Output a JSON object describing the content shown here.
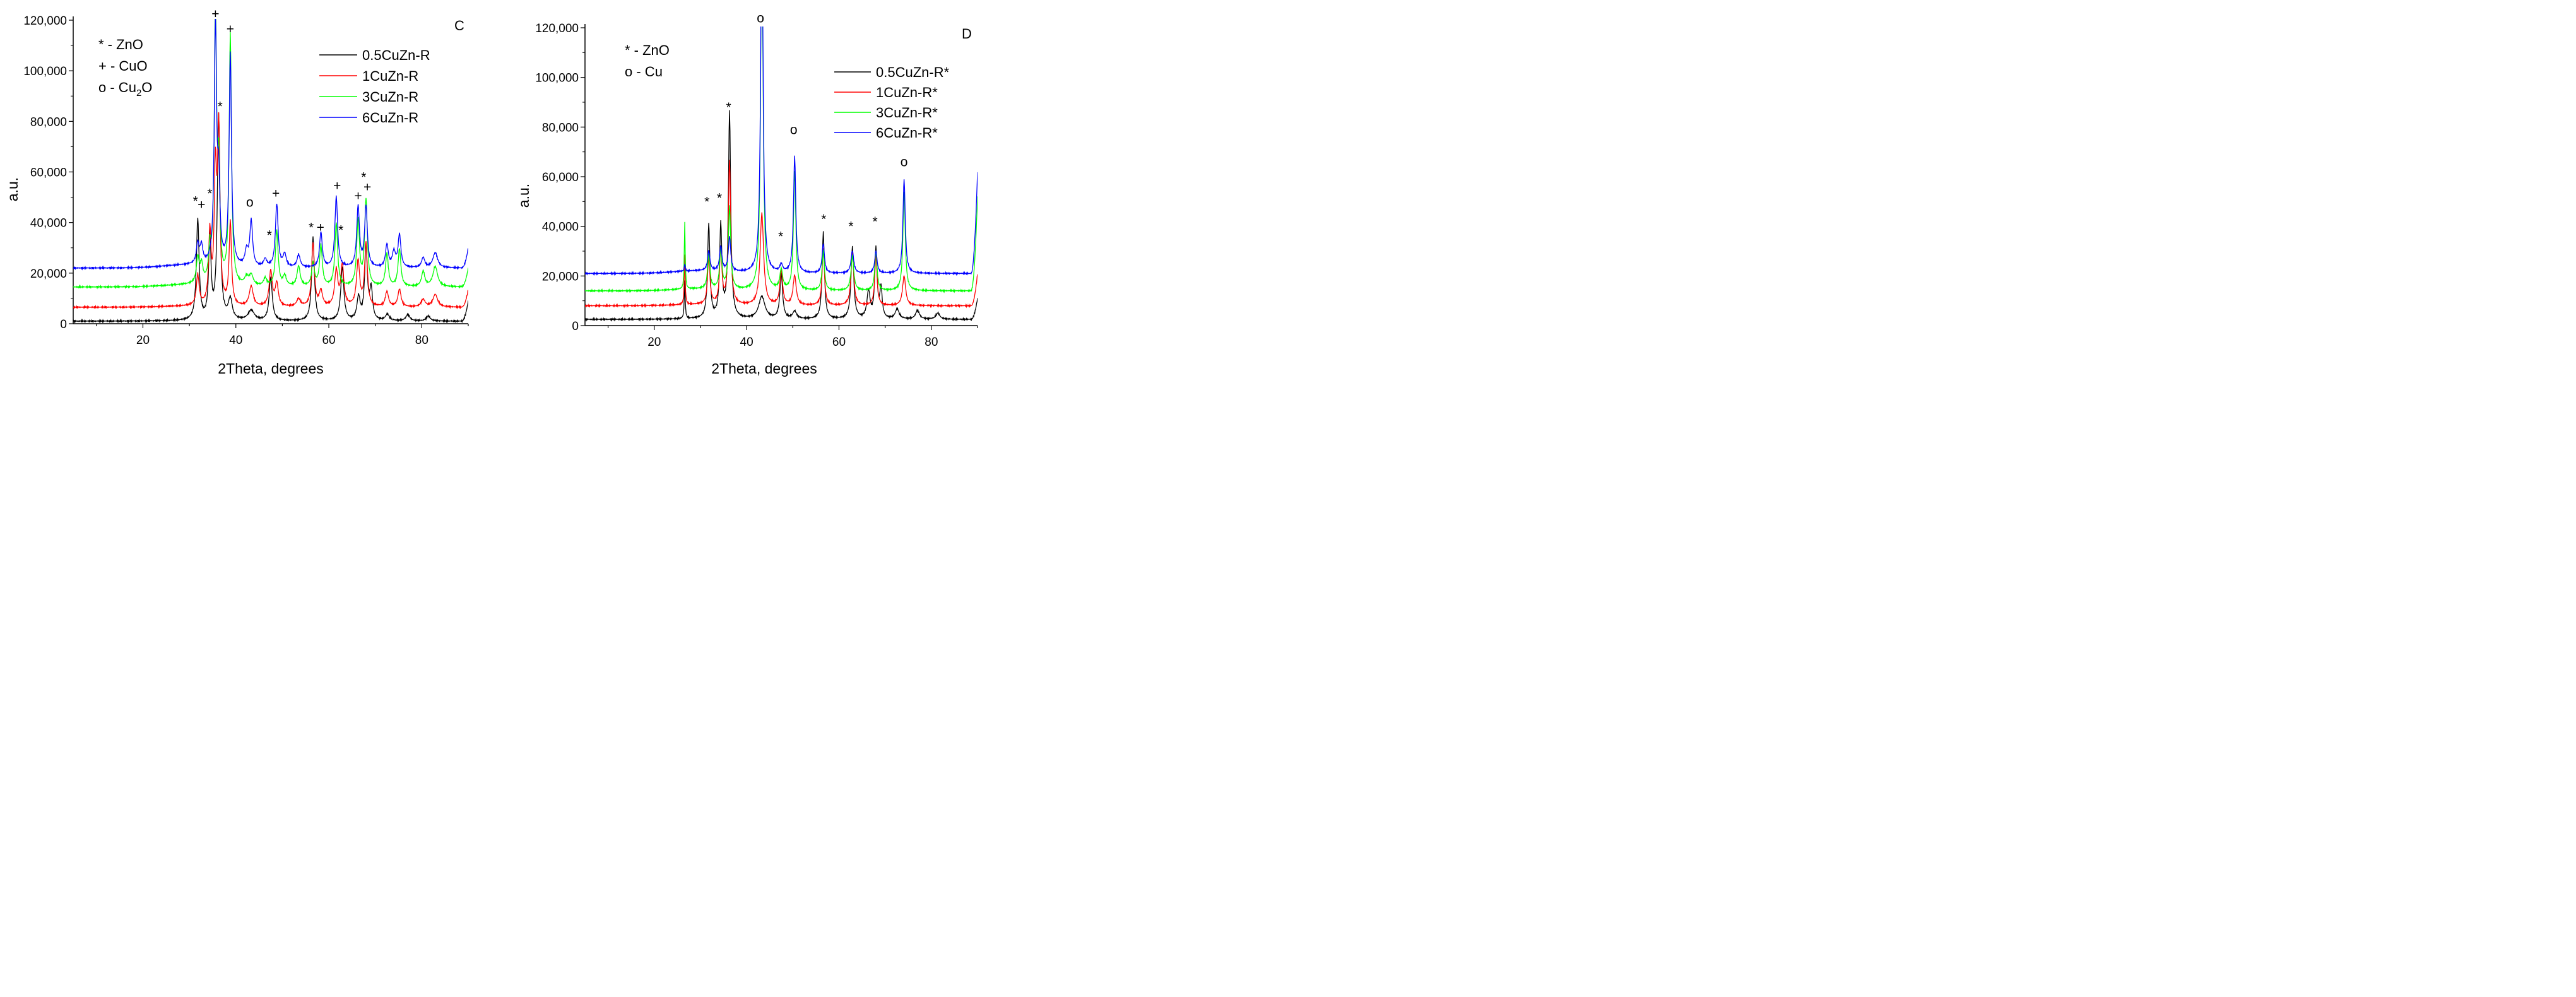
{
  "chart_data": [
    {
      "type": "line",
      "panel_label": "C",
      "xlabel": "2Theta, degrees",
      "ylabel": "a.u.",
      "xlim": [
        5,
        90
      ],
      "ylim": [
        0,
        120000
      ],
      "xticks": [
        20,
        40,
        60,
        80
      ],
      "yticks": [
        0,
        20000,
        40000,
        60000,
        80000,
        100000,
        120000
      ],
      "ytick_labels": [
        "0",
        "20,000",
        "40,000",
        "60,000",
        "80,000",
        "100,000",
        "120,000"
      ],
      "phase_key": [
        {
          "symbol": "*",
          "text": " - ZnO"
        },
        {
          "symbol": "+",
          "text": " - CuO"
        },
        {
          "symbol": "o",
          "text": " - Cu",
          "sub": "2",
          "tail": "O"
        }
      ],
      "legend_position": "top-right",
      "series": [
        {
          "name": "0.5CuZn-R",
          "color": "#000000",
          "baseline": 1000,
          "end": 9000,
          "peaks": [
            [
              31.8,
              40000,
              0.35
            ],
            [
              34.4,
              33000,
              0.3
            ],
            [
              36.3,
              81000,
              0.35
            ],
            [
              38.8,
              8000,
              0.5
            ],
            [
              43.3,
              4000,
              0.8
            ],
            [
              47.5,
              17000,
              0.4
            ],
            [
              56.6,
              33000,
              0.35
            ],
            [
              62.9,
              21000,
              0.4
            ],
            [
              66.4,
              9000,
              0.4
            ],
            [
              68.0,
              29000,
              0.35
            ],
            [
              69.1,
              12000,
              0.35
            ],
            [
              72.6,
              2500,
              0.5
            ],
            [
              77.0,
              2500,
              0.5
            ],
            [
              81.4,
              2000,
              0.5
            ]
          ]
        },
        {
          "name": "1CuZn-R",
          "color": "#ff0000",
          "baseline": 6500,
          "end": 13500,
          "peaks": [
            [
              31.8,
              12000,
              0.35
            ],
            [
              34.4,
              28000,
              0.3
            ],
            [
              35.6,
              51000,
              0.3
            ],
            [
              36.3,
              68000,
              0.3
            ],
            [
              38.8,
              33000,
              0.3
            ],
            [
              43.3,
              8000,
              0.5
            ],
            [
              47.5,
              14000,
              0.4
            ],
            [
              48.8,
              9000,
              0.4
            ],
            [
              53.5,
              3000,
              0.5
            ],
            [
              56.6,
              25000,
              0.35
            ],
            [
              58.3,
              6000,
              0.4
            ],
            [
              61.6,
              14000,
              0.4
            ],
            [
              62.9,
              16000,
              0.4
            ],
            [
              66.3,
              18000,
              0.4
            ],
            [
              68.0,
              25000,
              0.35
            ],
            [
              72.5,
              6000,
              0.4
            ],
            [
              75.2,
              7000,
              0.4
            ],
            [
              80.3,
              3000,
              0.5
            ],
            [
              82.9,
              5000,
              0.6
            ]
          ]
        },
        {
          "name": "3CuZn-R",
          "color": "#00ff00",
          "baseline": 14500,
          "end": 22000,
          "peaks": [
            [
              31.8,
              10000,
              0.35
            ],
            [
              32.6,
              7000,
              0.35
            ],
            [
              34.4,
              12000,
              0.3
            ],
            [
              35.6,
              105000,
              0.3
            ],
            [
              36.3,
              40000,
              0.3
            ],
            [
              38.8,
              99000,
              0.3
            ],
            [
              42.3,
              3000,
              0.5
            ],
            [
              43.3,
              4000,
              0.5
            ],
            [
              46.3,
              3000,
              0.4
            ],
            [
              48.8,
              22000,
              0.35
            ],
            [
              50.5,
              4000,
              0.4
            ],
            [
              53.5,
              8000,
              0.4
            ],
            [
              56.6,
              9000,
              0.35
            ],
            [
              58.3,
              16000,
              0.35
            ],
            [
              61.6,
              25000,
              0.35
            ],
            [
              66.3,
              26000,
              0.35
            ],
            [
              68.0,
              34000,
              0.35
            ],
            [
              72.5,
              13000,
              0.35
            ],
            [
              75.2,
              15000,
              0.35
            ],
            [
              80.3,
              6000,
              0.4
            ],
            [
              82.9,
              8000,
              0.6
            ]
          ]
        },
        {
          "name": "6CuZn-R",
          "color": "#0000ff",
          "baseline": 22000,
          "end": 30000,
          "peaks": [
            [
              31.8,
              8000,
              0.35
            ],
            [
              32.6,
              7000,
              0.35
            ],
            [
              35.6,
              94000,
              0.3
            ],
            [
              36.3,
              30000,
              0.3
            ],
            [
              38.8,
              84000,
              0.3
            ],
            [
              42.3,
              6000,
              0.4
            ],
            [
              43.3,
              18000,
              0.35
            ],
            [
              46.3,
              3000,
              0.4
            ],
            [
              48.8,
              25000,
              0.35
            ],
            [
              50.5,
              5000,
              0.4
            ],
            [
              53.5,
              5000,
              0.4
            ],
            [
              58.3,
              14000,
              0.35
            ],
            [
              61.6,
              28000,
              0.35
            ],
            [
              66.3,
              24000,
              0.35
            ],
            [
              68.0,
              24000,
              0.35
            ],
            [
              72.5,
              9000,
              0.35
            ],
            [
              74.0,
              6000,
              0.4
            ],
            [
              75.2,
              13000,
              0.35
            ],
            [
              80.3,
              4000,
              0.4
            ],
            [
              82.9,
              6000,
              0.6
            ]
          ]
        }
      ],
      "annotations": [
        {
          "text": "*",
          "x": 31.3,
          "y": 48500
        },
        {
          "text": "+",
          "x": 32.6,
          "y": 47000
        },
        {
          "text": "*",
          "x": 34.4,
          "y": 51500
        },
        {
          "text": "+",
          "x": 35.6,
          "y": 122500
        },
        {
          "text": "*",
          "x": 36.6,
          "y": 86000
        },
        {
          "text": "+",
          "x": 38.8,
          "y": 116500
        },
        {
          "text": "o",
          "x": 43.0,
          "y": 48000
        },
        {
          "text": "+",
          "x": 48.6,
          "y": 51500
        },
        {
          "text": "*",
          "x": 47.2,
          "y": 35000
        },
        {
          "text": "*",
          "x": 56.2,
          "y": 38000
        },
        {
          "text": "+",
          "x": 58.2,
          "y": 38000
        },
        {
          "text": "*",
          "x": 62.6,
          "y": 37000
        },
        {
          "text": "+",
          "x": 61.8,
          "y": 54500
        },
        {
          "text": "+",
          "x": 66.3,
          "y": 50500
        },
        {
          "text": "*",
          "x": 67.5,
          "y": 58000
        },
        {
          "text": "+",
          "x": 68.3,
          "y": 54000
        }
      ]
    },
    {
      "type": "line",
      "panel_label": "D",
      "xlabel": "2Theta, degrees",
      "ylabel": "a.u.",
      "xlim": [
        5,
        90
      ],
      "ylim": [
        0,
        120000
      ],
      "xticks": [
        20,
        40,
        60,
        80
      ],
      "yticks": [
        0,
        20000,
        40000,
        60000,
        80000,
        100000,
        120000
      ],
      "ytick_labels": [
        "0",
        "20,000",
        "40,000",
        "60,000",
        "80,000",
        "100,000",
        "120,000"
      ],
      "phase_key": [
        {
          "symbol": "*",
          "text": " - ZnO"
        },
        {
          "symbol": "o",
          "text": " - Cu"
        }
      ],
      "legend_position": "top-right",
      "series": [
        {
          "name": "0.5CuZn-R*",
          "color": "#000000",
          "baseline": 2500,
          "end": 11000,
          "peaks": [
            [
              26.6,
              15000,
              0.12
            ],
            [
              31.8,
              38000,
              0.3
            ],
            [
              34.4,
              37000,
              0.3
            ],
            [
              36.3,
              83000,
              0.3
            ],
            [
              43.3,
              9000,
              0.8
            ],
            [
              47.5,
              18000,
              0.35
            ],
            [
              50.4,
              3000,
              0.5
            ],
            [
              56.6,
              35000,
              0.3
            ],
            [
              62.9,
              29000,
              0.35
            ],
            [
              66.4,
              11000,
              0.4
            ],
            [
              68.0,
              28000,
              0.3
            ],
            [
              69.1,
              12000,
              0.3
            ],
            [
              72.6,
              4000,
              0.5
            ],
            [
              77.0,
              3500,
              0.5
            ],
            [
              81.4,
              2500,
              0.5
            ]
          ]
        },
        {
          "name": "1CuZn-R*",
          "color": "#ff0000",
          "baseline": 8000,
          "end": 21000,
          "peaks": [
            [
              26.6,
              20000,
              0.12
            ],
            [
              31.8,
              19000,
              0.3
            ],
            [
              34.4,
              22000,
              0.3
            ],
            [
              36.3,
              58000,
              0.3
            ],
            [
              43.3,
              37000,
              0.45
            ],
            [
              47.5,
              14000,
              0.35
            ],
            [
              50.4,
              12000,
              0.4
            ],
            [
              56.6,
              23000,
              0.3
            ],
            [
              62.9,
              22000,
              0.35
            ],
            [
              68.0,
              20000,
              0.3
            ],
            [
              74.1,
              12000,
              0.4
            ]
          ]
        },
        {
          "name": "3CuZn-R*",
          "color": "#00ff00",
          "baseline": 14000,
          "end": 52000,
          "peaks": [
            [
              26.6,
              27000,
              0.12
            ],
            [
              31.8,
              14000,
              0.3
            ],
            [
              34.4,
              16000,
              0.3
            ],
            [
              36.3,
              33000,
              0.3
            ],
            [
              43.3,
              150000,
              0.3
            ],
            [
              47.5,
              8000,
              0.35
            ],
            [
              50.4,
              48000,
              0.3
            ],
            [
              56.6,
              16000,
              0.3
            ],
            [
              62.9,
              14000,
              0.35
            ],
            [
              68.0,
              16000,
              0.3
            ],
            [
              74.1,
              40000,
              0.3
            ]
          ]
        },
        {
          "name": "6CuZn-R*",
          "color": "#0000ff",
          "baseline": 21000,
          "end": 62000,
          "peaks": [
            [
              26.6,
              3000,
              0.12
            ],
            [
              31.8,
              8000,
              0.3
            ],
            [
              34.4,
              10000,
              0.3
            ],
            [
              36.3,
              14000,
              0.3
            ],
            [
              43.3,
              150000,
              0.3
            ],
            [
              47.5,
              3000,
              0.35
            ],
            [
              50.4,
              47000,
              0.3
            ],
            [
              56.6,
              12000,
              0.3
            ],
            [
              62.9,
              9000,
              0.35
            ],
            [
              68.0,
              9000,
              0.3
            ],
            [
              74.1,
              38000,
              0.3
            ]
          ]
        }
      ],
      "annotations": [
        {
          "text": "*",
          "x": 31.4,
          "y": 50000
        },
        {
          "text": "*",
          "x": 34.1,
          "y": 51500
        },
        {
          "text": "*",
          "x": 36.1,
          "y": 88000
        },
        {
          "text": "o",
          "x": 43.0,
          "y": 124000
        },
        {
          "text": "*",
          "x": 47.4,
          "y": 36000
        },
        {
          "text": "o",
          "x": 50.2,
          "y": 79000
        },
        {
          "text": "*",
          "x": 56.7,
          "y": 43000
        },
        {
          "text": "*",
          "x": 62.6,
          "y": 40000
        },
        {
          "text": "*",
          "x": 67.8,
          "y": 42000
        },
        {
          "text": "o",
          "x": 74.1,
          "y": 66000
        }
      ]
    }
  ]
}
